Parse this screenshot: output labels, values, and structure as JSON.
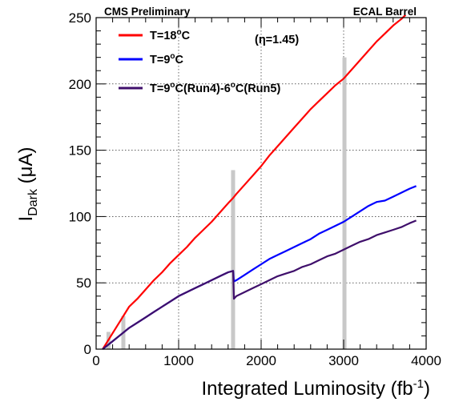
{
  "chart_data": {
    "type": "line",
    "header_left": "CMS Preliminary",
    "header_right": "ECAL Barrel",
    "annotation": "(η=1.45)",
    "xlabel": "Integrated Luminosity (fb",
    "xlabel_sup": "-1",
    "xlabel_end": ")",
    "ylabel_main": "I",
    "ylabel_sub": "Dark",
    "ylabel_unit": " (μA)",
    "xlim": [
      0,
      4000
    ],
    "ylim": [
      0,
      250
    ],
    "grid": "dotted at x=1000,2000,3000 and y=50,100,150,200",
    "xticks": [
      0,
      1000,
      2000,
      3000,
      4000
    ],
    "yticks": [
      0,
      50,
      100,
      150,
      200,
      250
    ],
    "legend_position": "top-left",
    "series": [
      {
        "name": "T=18°C",
        "label_parts": [
          "T=18",
          "o",
          "C"
        ],
        "color": "#ff0000",
        "points": [
          [
            80,
            0
          ],
          [
            200,
            12
          ],
          [
            300,
            22
          ],
          [
            400,
            32
          ],
          [
            500,
            38
          ],
          [
            600,
            45
          ],
          [
            700,
            52
          ],
          [
            800,
            58
          ],
          [
            900,
            65
          ],
          [
            1000,
            71
          ],
          [
            1100,
            77
          ],
          [
            1200,
            84
          ],
          [
            1300,
            90
          ],
          [
            1400,
            96
          ],
          [
            1500,
            103
          ],
          [
            1600,
            110
          ],
          [
            1660,
            114
          ],
          [
            1700,
            117
          ],
          [
            1800,
            124
          ],
          [
            1900,
            131
          ],
          [
            2000,
            138
          ],
          [
            2100,
            146
          ],
          [
            2200,
            153
          ],
          [
            2300,
            160
          ],
          [
            2400,
            167
          ],
          [
            2500,
            174
          ],
          [
            2600,
            181
          ],
          [
            2700,
            187
          ],
          [
            2800,
            193
          ],
          [
            2900,
            199
          ],
          [
            3000,
            204
          ],
          [
            3100,
            211
          ],
          [
            3200,
            218
          ],
          [
            3300,
            225
          ],
          [
            3400,
            232
          ],
          [
            3500,
            238
          ],
          [
            3600,
            244
          ],
          [
            3700,
            249
          ],
          [
            3750,
            252
          ]
        ]
      },
      {
        "name": "T=9°C",
        "label_parts": [
          "T=9",
          "o",
          "C"
        ],
        "color": "#0000ff",
        "points": [
          [
            80,
            0
          ],
          [
            200,
            6
          ],
          [
            300,
            11
          ],
          [
            400,
            16
          ],
          [
            500,
            20
          ],
          [
            600,
            24
          ],
          [
            700,
            28
          ],
          [
            800,
            32
          ],
          [
            900,
            36
          ],
          [
            1000,
            40
          ],
          [
            1100,
            43
          ],
          [
            1200,
            46
          ],
          [
            1300,
            49
          ],
          [
            1400,
            52
          ],
          [
            1500,
            55
          ],
          [
            1600,
            58
          ],
          [
            1660,
            59
          ],
          [
            1670,
            51
          ],
          [
            1700,
            52
          ],
          [
            1800,
            56
          ],
          [
            1900,
            60
          ],
          [
            2000,
            64
          ],
          [
            2100,
            68
          ],
          [
            2200,
            71
          ],
          [
            2300,
            74
          ],
          [
            2400,
            77
          ],
          [
            2500,
            80
          ],
          [
            2600,
            83
          ],
          [
            2700,
            87
          ],
          [
            2800,
            90
          ],
          [
            2900,
            93
          ],
          [
            3000,
            96
          ],
          [
            3100,
            100
          ],
          [
            3200,
            104
          ],
          [
            3300,
            108
          ],
          [
            3400,
            111
          ],
          [
            3500,
            112
          ],
          [
            3600,
            115
          ],
          [
            3700,
            118
          ],
          [
            3800,
            121
          ],
          [
            3880,
            123
          ]
        ]
      },
      {
        "name": "T=9°C(Run4)-6°C(Run5)",
        "label_parts": [
          "T=9",
          "o",
          "C(Run4)-6",
          "o",
          "C(Run5)"
        ],
        "color": "#3f0f6b",
        "points": [
          [
            80,
            0
          ],
          [
            200,
            6
          ],
          [
            300,
            11
          ],
          [
            400,
            16
          ],
          [
            500,
            20
          ],
          [
            600,
            24
          ],
          [
            700,
            28
          ],
          [
            800,
            32
          ],
          [
            900,
            36
          ],
          [
            1000,
            40
          ],
          [
            1100,
            43
          ],
          [
            1200,
            46
          ],
          [
            1300,
            49
          ],
          [
            1400,
            52
          ],
          [
            1500,
            55
          ],
          [
            1600,
            58
          ],
          [
            1660,
            59
          ],
          [
            1670,
            38
          ],
          [
            1700,
            40
          ],
          [
            1800,
            43
          ],
          [
            1900,
            46
          ],
          [
            2000,
            49
          ],
          [
            2100,
            52
          ],
          [
            2200,
            55
          ],
          [
            2300,
            57
          ],
          [
            2400,
            59
          ],
          [
            2500,
            62
          ],
          [
            2600,
            64
          ],
          [
            2700,
            67
          ],
          [
            2800,
            70
          ],
          [
            2900,
            72
          ],
          [
            3000,
            75
          ],
          [
            3100,
            78
          ],
          [
            3200,
            81
          ],
          [
            3300,
            83
          ],
          [
            3400,
            86
          ],
          [
            3500,
            88
          ],
          [
            3600,
            90
          ],
          [
            3700,
            92
          ],
          [
            3800,
            95
          ],
          [
            3880,
            97
          ]
        ]
      }
    ],
    "gray_bars": [
      {
        "x": 150,
        "y": 13
      },
      {
        "x": 330,
        "y": 25
      },
      {
        "x": 1660,
        "y": 135
      },
      {
        "x": 3010,
        "y": 220
      }
    ],
    "gray_color": "#c8c8c8"
  }
}
